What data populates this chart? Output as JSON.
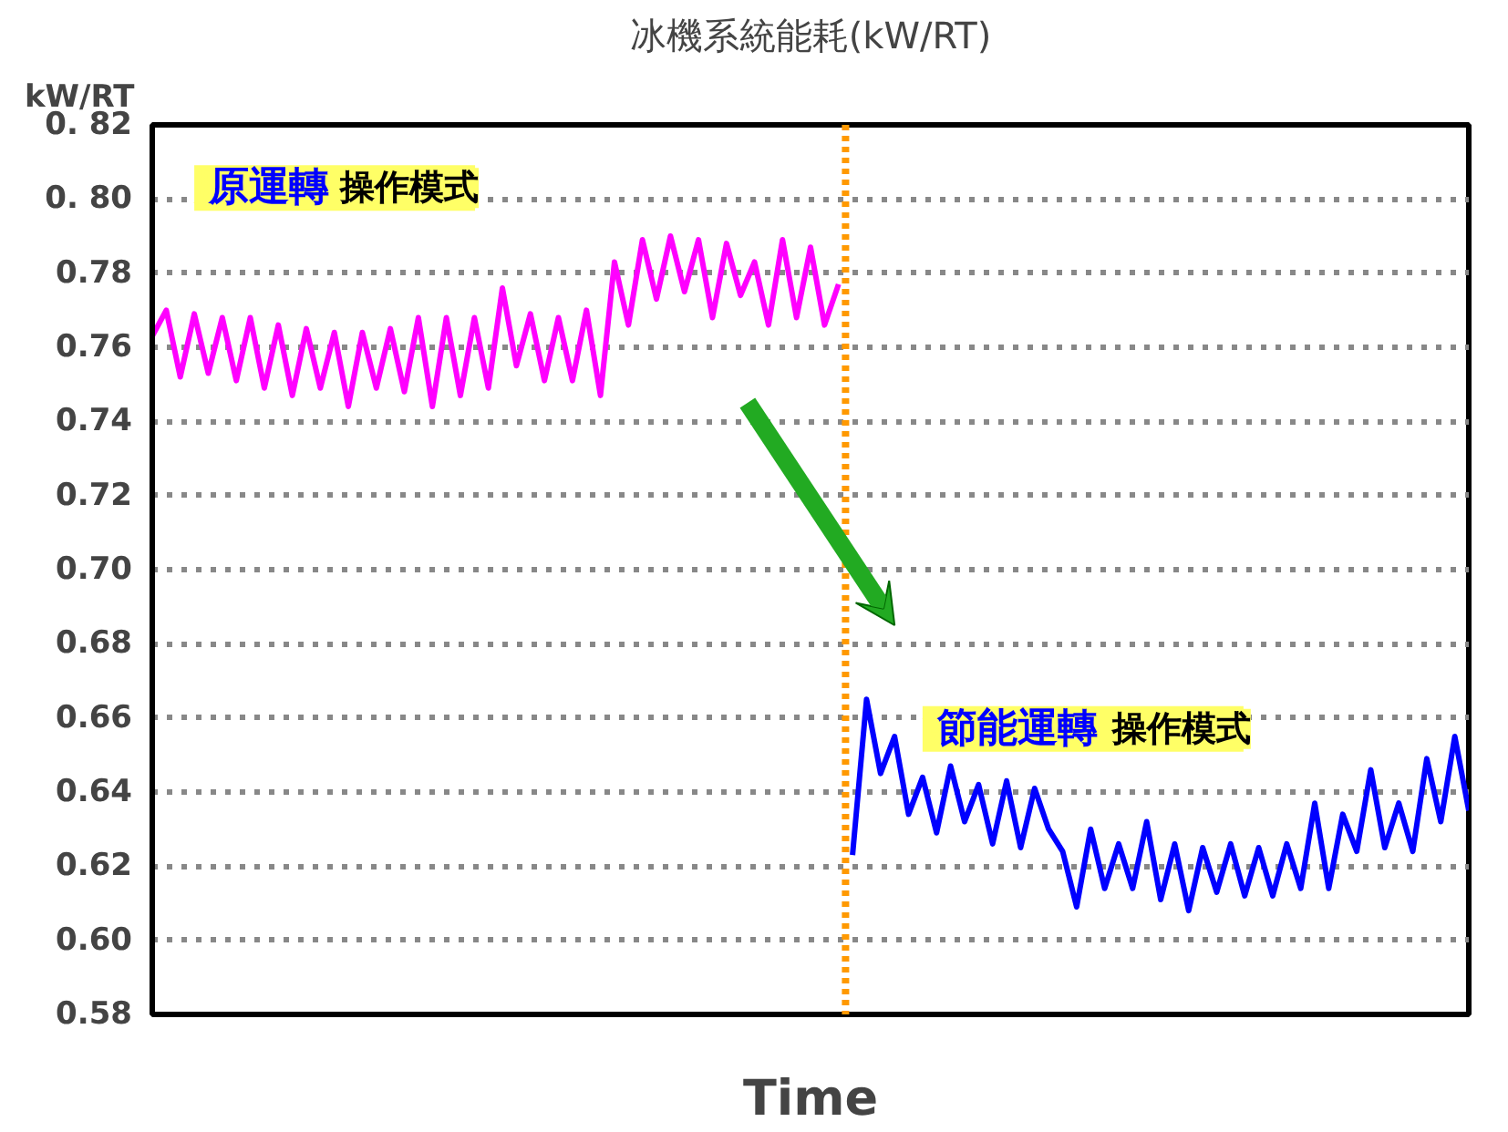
{
  "chart_data": {
    "type": "line",
    "title": "冰機系統能耗(kW/RT)",
    "xlabel": "Time",
    "ylabel": "kW/RT",
    "categories": [
      null,
      null,
      null,
      null,
      null,
      null,
      null,
      null,
      null,
      null,
      null,
      null,
      null,
      null,
      null,
      null,
      null,
      null,
      null,
      null,
      null,
      null,
      null,
      null,
      null,
      null,
      null,
      null,
      null,
      null,
      null,
      null,
      null,
      null,
      null,
      null,
      null,
      null,
      null,
      null,
      null,
      null,
      null,
      null,
      null,
      null,
      null,
      null,
      null,
      null,
      null,
      null,
      null,
      null,
      null,
      null,
      null,
      null,
      null,
      null,
      null,
      null,
      null,
      null,
      null,
      null,
      null,
      null,
      null,
      null,
      null,
      null,
      null,
      null,
      null,
      null,
      null,
      null,
      null,
      null,
      null,
      null,
      null,
      null,
      null,
      null,
      null,
      null,
      null,
      null,
      null,
      null,
      null,
      null,
      null
    ],
    "series": [
      {
        "color": "#ff00ff",
        "values": [
          0.763,
          0.77,
          0.752,
          0.769,
          0.753,
          0.768,
          0.751,
          0.768,
          0.749,
          0.766,
          0.747,
          0.765,
          0.749,
          0.764,
          0.744,
          0.764,
          0.749,
          0.765,
          0.748,
          0.768,
          0.744,
          0.768,
          0.747,
          0.768,
          0.749,
          0.776,
          0.755,
          0.769,
          0.751,
          0.768,
          0.751,
          0.77,
          0.747,
          0.783,
          0.766,
          0.789,
          0.773,
          0.79,
          0.775,
          0.789,
          0.768,
          0.788,
          0.774,
          0.783,
          0.766,
          0.789,
          0.768,
          0.787,
          0.766,
          0.777,
          null,
          null,
          null,
          null,
          null,
          null,
          null,
          null,
          null,
          null,
          null,
          null,
          null,
          null,
          null,
          null,
          null,
          null,
          null,
          null,
          null,
          null,
          null,
          null,
          null,
          null,
          null,
          null,
          null,
          null,
          null,
          null,
          null,
          null,
          null,
          null,
          null,
          null,
          null,
          null,
          null,
          null,
          null,
          null,
          null
        ]
      },
      {
        "color": "#0000ff",
        "values": [
          null,
          null,
          null,
          null,
          null,
          null,
          null,
          null,
          null,
          null,
          null,
          null,
          null,
          null,
          null,
          null,
          null,
          null,
          null,
          null,
          null,
          null,
          null,
          null,
          null,
          null,
          null,
          null,
          null,
          null,
          null,
          null,
          null,
          null,
          null,
          null,
          null,
          null,
          null,
          null,
          null,
          null,
          null,
          null,
          null,
          null,
          null,
          null,
          null,
          null,
          0.623,
          0.665,
          0.645,
          0.655,
          0.634,
          0.644,
          0.629,
          0.647,
          0.632,
          0.642,
          0.626,
          0.643,
          0.625,
          0.641,
          0.63,
          0.624,
          0.609,
          0.63,
          0.614,
          0.626,
          0.614,
          0.632,
          0.611,
          0.626,
          0.608,
          0.625,
          0.613,
          0.626,
          0.612,
          0.625,
          0.612,
          0.626,
          0.614,
          0.637,
          0.614,
          0.634,
          0.624,
          0.646,
          0.625,
          0.637,
          0.624,
          0.649,
          0.632,
          0.655,
          0.635
        ]
      }
    ],
    "ylim": [
      0.58,
      0.82
    ],
    "yticks": [
      {
        "value": 0.58,
        "label": "0.58"
      },
      {
        "value": 0.6,
        "label": "0.60"
      },
      {
        "value": 0.62,
        "label": "0.62"
      },
      {
        "value": 0.64,
        "label": "0.64"
      },
      {
        "value": 0.66,
        "label": "0.66"
      },
      {
        "value": 0.68,
        "label": "0.68"
      },
      {
        "value": 0.7,
        "label": "0.70"
      },
      {
        "value": 0.72,
        "label": "0.72"
      },
      {
        "value": 0.74,
        "label": "0.74"
      },
      {
        "value": 0.76,
        "label": "0.76"
      },
      {
        "value": 0.78,
        "label": "0.78"
      },
      {
        "value": 0.8,
        "label": "0. 80"
      },
      {
        "value": 0.82,
        "label": "0. 82"
      }
    ],
    "grid": "y",
    "tick_labels": "y",
    "annotations": [
      "原運轉",
      "操作模式",
      "節能運轉",
      "操作模式"
    ]
  }
}
